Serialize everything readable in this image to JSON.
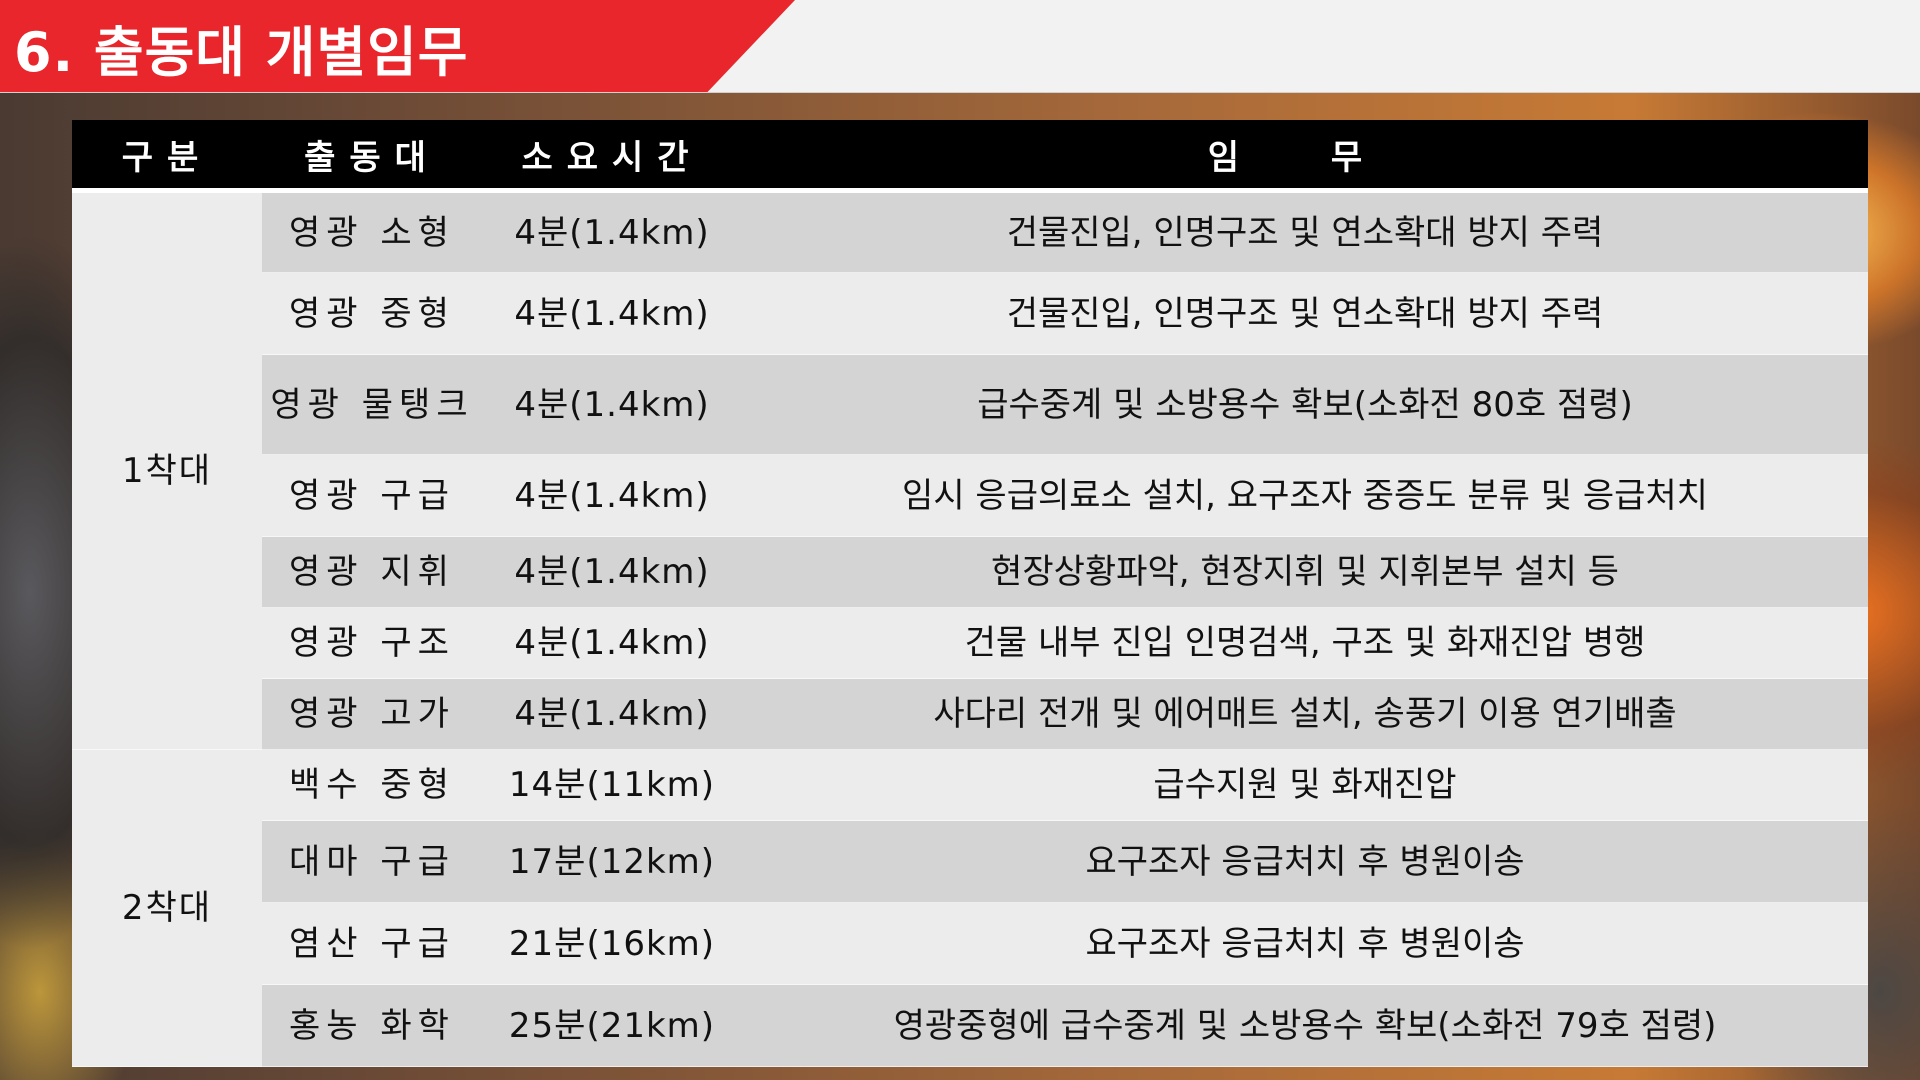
{
  "page_title": "6. 출동대 개별임무",
  "table": {
    "headers": [
      "구분",
      "출동대",
      "소요시간",
      "임  무"
    ],
    "groups": [
      {
        "label": "1착대",
        "rows": [
          {
            "unit": "영광 소형",
            "time": "4분(1.4km)",
            "duty": "건물진입, 인명구조 및 연소확대 방지 주력"
          },
          {
            "unit": "영광 중형",
            "time": "4분(1.4km)",
            "duty": "건물진입, 인명구조 및 연소확대 방지 주력"
          },
          {
            "unit": "영광 물탱크",
            "time": "4분(1.4km)",
            "duty": "급수중계 및 소방용수 확보(소화전 80호 점령)"
          },
          {
            "unit": "영광 구급",
            "time": "4분(1.4km)",
            "duty": "임시 응급의료소 설치, 요구조자 중증도 분류 및 응급처치"
          },
          {
            "unit": "영광 지휘",
            "time": "4분(1.4km)",
            "duty": "현장상황파악, 현장지휘 및 지휘본부 설치 등"
          },
          {
            "unit": "영광 구조",
            "time": "4분(1.4km)",
            "duty": "건물 내부 진입 인명검색, 구조 및 화재진압 병행"
          },
          {
            "unit": "영광 고가",
            "time": "4분(1.4km)",
            "duty": "사다리 전개  및 에어매트 설치, 송풍기 이용 연기배출"
          }
        ]
      },
      {
        "label": "2착대",
        "rows": [
          {
            "unit": "백수 중형",
            "time": "14분(11km)",
            "duty": "급수지원 및 화재진압"
          },
          {
            "unit": "대마 구급",
            "time": "17분(12km)",
            "duty": "요구조자 응급처치 후 병원이송"
          },
          {
            "unit": "염산 구급",
            "time": "21분(16km)",
            "duty": "요구조자 응급처치 후 병원이송"
          },
          {
            "unit": "홍농 화학",
            "time": "25분(21km)",
            "duty": "영광중형에 급수중계 및 소방용수 확보(소화전 79호 점령)"
          }
        ]
      }
    ]
  },
  "colors": {
    "accent_red": "#e8262b",
    "header_black": "#000000",
    "row_dark": "#d4d4d4",
    "row_light": "#ececec"
  }
}
